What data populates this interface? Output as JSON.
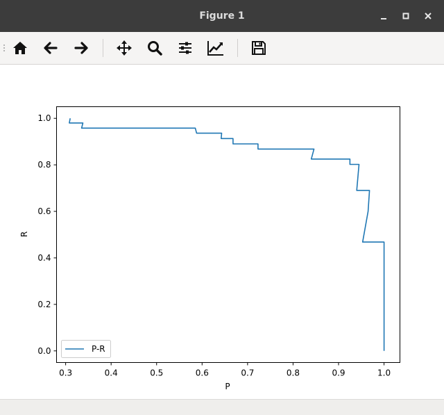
{
  "window": {
    "title": "Figure 1"
  },
  "toolbar": {
    "buttons": [
      "home-icon",
      "back-arrow-icon",
      "forward-arrow-icon",
      "pan-icon",
      "zoom-icon",
      "configure-subplots-icon",
      "edit-axis-icon",
      "save-icon"
    ]
  },
  "chart_data": {
    "type": "line",
    "xlabel": "P",
    "ylabel": "R",
    "xlim": [
      0.28,
      1.035
    ],
    "ylim": [
      -0.05,
      1.05
    ],
    "xticks": [
      "0.3",
      "0.4",
      "0.5",
      "0.6",
      "0.7",
      "0.8",
      "0.9",
      "1.0"
    ],
    "yticks": [
      "0.0",
      "0.2",
      "0.4",
      "0.6",
      "0.8",
      "1.0"
    ],
    "legend_position": "lower-left",
    "series": [
      {
        "name": "P-R",
        "color": "#1f77b4",
        "x": [
          0.31,
          0.308,
          0.338,
          0.335,
          0.585,
          0.588,
          0.643,
          0.642,
          0.668,
          0.668,
          0.723,
          0.723,
          0.846,
          0.84,
          0.925,
          0.925,
          0.945,
          0.94,
          0.968,
          0.965,
          0.953,
          1.0,
          1.0
        ],
        "y": [
          1.0,
          0.98,
          0.98,
          0.958,
          0.958,
          0.936,
          0.936,
          0.913,
          0.913,
          0.89,
          0.89,
          0.868,
          0.868,
          0.825,
          0.825,
          0.802,
          0.802,
          0.69,
          0.69,
          0.6,
          0.468,
          0.468,
          0.0
        ]
      }
    ]
  }
}
